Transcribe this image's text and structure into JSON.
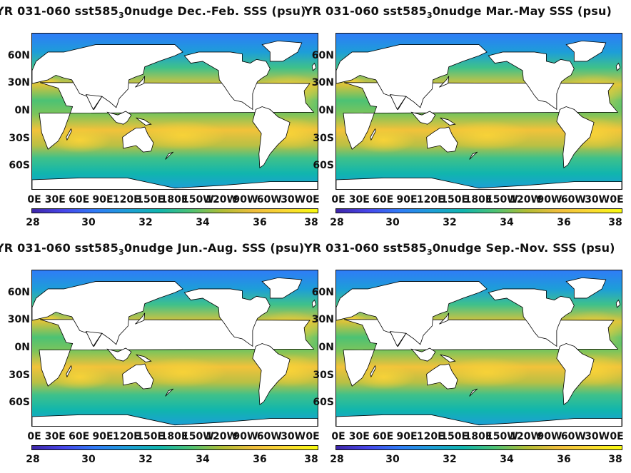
{
  "panels": [
    {
      "id": "djf",
      "title_prefix": "YR 031-060 sst585",
      "title_sub": "3",
      "title_suffix": "0nudge Dec.-Feb. SSS (psu)",
      "title_overflow": "YR 031-060 sst585 0nudge Dec.-Feb. SSS (psu)"
    },
    {
      "id": "mam",
      "title_prefix": "YR 031-060 sst585",
      "title_sub": "3",
      "title_suffix": "0nudge Mar.-May SSS (psu)"
    },
    {
      "id": "jja",
      "title_prefix": "YR 031-060 sst585",
      "title_sub": "3",
      "title_suffix": "0nudge Jun.-Aug. SSS (psu)"
    },
    {
      "id": "son",
      "title_prefix": "YR 031-060 sst585",
      "title_sub": "3",
      "title_suffix": "0nudge Sep.-Nov. SSS (psu)"
    }
  ],
  "lat_labels": [
    "60N",
    "30N",
    "0N",
    "30S",
    "60S"
  ],
  "lon_labels": [
    "0E",
    "30E",
    "60E",
    "90E",
    "120E",
    "150E",
    "180E",
    "150W",
    "120W",
    "90W",
    "60W",
    "30W",
    "0E"
  ],
  "colorbar": {
    "ticks": [
      "28",
      "30",
      "32",
      "34",
      "36",
      "38"
    ],
    "min": 28,
    "max": 38,
    "colormap": "parula",
    "colors": [
      "#3e26a8",
      "#4746eb",
      "#2f7cf7",
      "#1d9ed8",
      "#10b5ae",
      "#4cc274",
      "#b1bd35",
      "#f0be3c",
      "#fad933",
      "#f9fb0e"
    ]
  },
  "colors": {
    "land": "#ffffff",
    "ocean_fresh": "#2e8fd6",
    "ocean_mid": "#3fbf8a",
    "ocean_salty": "#f3c43a",
    "ocean_hyper": "#f9f00f"
  }
}
